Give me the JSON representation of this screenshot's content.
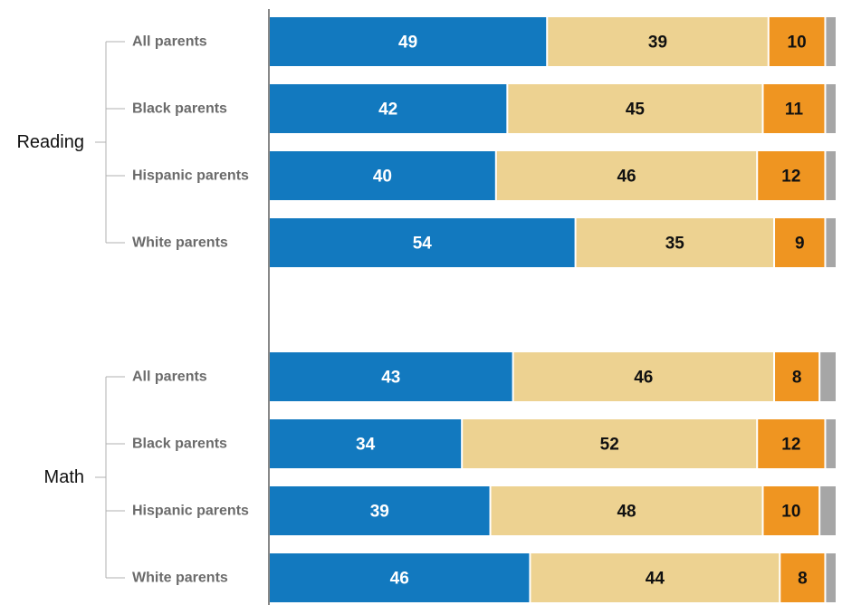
{
  "chart_data": {
    "type": "bar",
    "orientation": "horizontal",
    "stacked": true,
    "xlim": [
      0,
      100
    ],
    "grid": false,
    "series_colors": [
      "#1279bf",
      "#edd291",
      "#ef9521",
      "#a6a6a6"
    ],
    "label_colors": [
      "#ffffff",
      "#111111",
      "#111111",
      "#111111"
    ],
    "groups": [
      {
        "label": "Reading",
        "rows": [
          {
            "label": "All parents",
            "values": [
              49,
              39,
              10,
              2
            ]
          },
          {
            "label": "Black parents",
            "values": [
              42,
              45,
              11,
              2
            ]
          },
          {
            "label": "Hispanic parents",
            "values": [
              40,
              46,
              12,
              2
            ]
          },
          {
            "label": "White parents",
            "values": [
              54,
              35,
              9,
              2
            ]
          }
        ]
      },
      {
        "label": "Math",
        "rows": [
          {
            "label": "All parents",
            "values": [
              43,
              46,
              8,
              3
            ]
          },
          {
            "label": "Black parents",
            "values": [
              34,
              52,
              12,
              2
            ]
          },
          {
            "label": "Hispanic parents",
            "values": [
              39,
              48,
              10,
              3
            ]
          },
          {
            "label": "White parents",
            "values": [
              46,
              44,
              8,
              2
            ]
          }
        ]
      }
    ]
  }
}
